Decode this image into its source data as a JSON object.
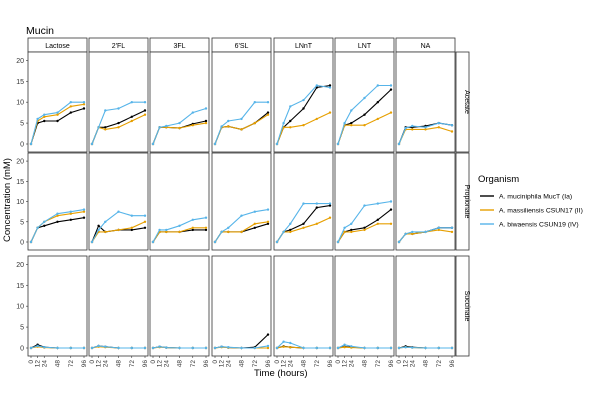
{
  "chart_data": {
    "type": "line",
    "title": "Mucin",
    "xlabel": "Time (hours)",
    "ylabel": "Concentration (mM)",
    "x_ticks": [
      "0",
      "12",
      "24",
      "48",
      "72",
      "96"
    ],
    "x": [
      0,
      12,
      24,
      48,
      72,
      96
    ],
    "xlim": [
      0,
      96
    ],
    "ylim": [
      0,
      22
    ],
    "y_ticks": [
      0,
      5,
      10,
      15,
      20
    ],
    "grid": false,
    "legend": {
      "title": "Organism",
      "position": "right",
      "entries": [
        {
          "name": "A. muciniphila MucT (Ia)",
          "color": "#000000"
        },
        {
          "name": "A. massiliensis CSUN17 (II)",
          "color": "#E69F00"
        },
        {
          "name": "A. biwaensis CSUN19 (IV)",
          "color": "#56B4E9"
        }
      ]
    },
    "columns": [
      "Lactose",
      "2'FL",
      "3FL",
      "6'SL",
      "LNnT",
      "LNT",
      "NA"
    ],
    "rows": [
      "Acetate",
      "Propionate",
      "Succinate"
    ],
    "panels": {
      "Acetate": {
        "Lactose": {
          "muc": [
            0,
            5,
            5.5,
            5.5,
            7.5,
            8.5
          ],
          "mas": [
            0,
            5.5,
            6.5,
            7,
            9,
            9.5
          ],
          "biw": [
            0,
            6,
            7,
            7.5,
            10,
            10
          ]
        },
        "2'FL": {
          "muc": [
            0,
            4,
            4,
            5,
            6.5,
            8
          ],
          "mas": [
            0,
            4,
            3.5,
            4,
            5.5,
            7
          ],
          "biw": [
            0,
            4,
            8,
            8.5,
            10,
            10
          ]
        },
        "3FL": {
          "muc": [
            0,
            4,
            4,
            3.8,
            4.8,
            5.5
          ],
          "mas": [
            0,
            4,
            4,
            3.8,
            4.5,
            5
          ],
          "biw": [
            0,
            4,
            4.3,
            5,
            7.5,
            8.5
          ]
        },
        "6'SL": {
          "muc": [
            0,
            4,
            4.2,
            3.5,
            5,
            7.5
          ],
          "mas": [
            0,
            4,
            4.2,
            3.5,
            5,
            7
          ],
          "biw": [
            0,
            4.2,
            5.5,
            6,
            10,
            10
          ]
        },
        "LNnT": {
          "muc": [
            0,
            4,
            5.5,
            8.5,
            13.5,
            14
          ],
          "mas": [
            0,
            4,
            4,
            4.5,
            6,
            7.5
          ],
          "biw": [
            0,
            5,
            9,
            10.5,
            14,
            13.5
          ]
        },
        "LNT": {
          "muc": [
            0,
            4.5,
            5,
            7,
            10,
            13
          ],
          "mas": [
            0,
            4.5,
            4.5,
            4.5,
            6,
            7.5
          ],
          "biw": [
            0,
            5,
            8,
            11,
            14,
            14
          ]
        },
        "NA": {
          "muc": [
            0,
            4,
            4,
            4.3,
            5,
            4.5
          ],
          "mas": [
            0,
            3.5,
            3.5,
            3.5,
            4,
            3
          ],
          "biw": [
            0,
            3.8,
            4.3,
            4,
            5,
            4.5
          ]
        }
      },
      "Propionate": {
        "Lactose": {
          "muc": [
            0,
            3.5,
            4,
            5,
            5.5,
            6
          ],
          "mas": [
            0,
            3.5,
            5,
            6.5,
            7,
            7.5
          ],
          "biw": [
            0,
            3.5,
            5,
            7,
            7.5,
            8
          ]
        },
        "2'FL": {
          "muc": [
            0,
            4,
            2.5,
            3,
            3,
            3.5
          ],
          "mas": [
            0,
            2.5,
            2.5,
            3,
            3.5,
            5
          ],
          "biw": [
            0,
            3,
            5,
            7.5,
            6.5,
            6.5
          ]
        },
        "3FL": {
          "muc": [
            0,
            2.5,
            2.5,
            2.5,
            3,
            3
          ],
          "mas": [
            0,
            2.5,
            2.5,
            2.5,
            3.5,
            3.5
          ],
          "biw": [
            0,
            3,
            3,
            4,
            5.5,
            6
          ]
        },
        "6'SL": {
          "muc": [
            0,
            2.5,
            2.5,
            2.5,
            3.5,
            4.5
          ],
          "mas": [
            0,
            2.5,
            2.5,
            2.5,
            4.5,
            5
          ],
          "biw": [
            0,
            2.5,
            3.5,
            6.5,
            7.5,
            8
          ]
        },
        "LNnT": {
          "muc": [
            0,
            2.5,
            3,
            4.5,
            8.5,
            9
          ],
          "mas": [
            0,
            2.5,
            2.5,
            3.5,
            4.5,
            6
          ],
          "biw": [
            0,
            2.5,
            4.5,
            9.5,
            9.5,
            9.5
          ]
        },
        "LNT": {
          "muc": [
            0,
            2.5,
            3,
            3.5,
            5.5,
            8
          ],
          "mas": [
            0,
            2.5,
            2.5,
            3,
            4.5,
            4.5
          ],
          "biw": [
            0,
            3.5,
            4.5,
            9,
            9.5,
            10
          ]
        },
        "NA": {
          "muc": [
            0,
            2,
            2,
            2.5,
            3.5,
            3.5
          ],
          "mas": [
            0,
            2,
            2,
            2.5,
            3,
            2.5
          ],
          "biw": [
            0,
            2,
            2.5,
            2.5,
            3.5,
            3.5
          ]
        }
      },
      "Succinate": {
        "Lactose": {
          "muc": [
            0,
            0.8,
            0.2,
            0,
            0,
            0
          ],
          "mas": [
            0,
            0.3,
            0.1,
            0,
            0,
            0
          ],
          "biw": [
            0,
            0.5,
            0.2,
            0,
            0,
            0
          ]
        },
        "2'FL": {
          "muc": [
            0,
            0.5,
            0.3,
            0,
            0,
            0
          ],
          "mas": [
            0,
            0.3,
            0.2,
            0,
            0,
            0
          ],
          "biw": [
            0,
            0.5,
            0.3,
            0,
            0,
            0
          ]
        },
        "3FL": {
          "muc": [
            0,
            0.3,
            0.1,
            0,
            0,
            0
          ],
          "mas": [
            0,
            0.2,
            0.1,
            0,
            0,
            0
          ],
          "biw": [
            0,
            0.3,
            0.1,
            0,
            0,
            0
          ]
        },
        "6'SL": {
          "muc": [
            0,
            0.3,
            0.1,
            0,
            0.2,
            3.2
          ],
          "mas": [
            0,
            0.2,
            0.1,
            0,
            0,
            0
          ],
          "biw": [
            0,
            0.3,
            0.2,
            0,
            0,
            0.5
          ]
        },
        "LNnT": {
          "muc": [
            0,
            0.4,
            0.2,
            0,
            0,
            0
          ],
          "mas": [
            0,
            0.3,
            0.2,
            0,
            0,
            0
          ],
          "biw": [
            0,
            1.5,
            1.2,
            0,
            0,
            0
          ]
        },
        "LNT": {
          "muc": [
            0,
            0.3,
            0.2,
            0,
            0,
            0
          ],
          "mas": [
            0,
            0.2,
            0.1,
            0,
            0,
            0
          ],
          "biw": [
            0,
            0.8,
            0.4,
            0,
            0,
            0
          ]
        },
        "NA": {
          "muc": [
            0,
            0.4,
            0.2,
            0,
            0,
            0
          ],
          "mas": [
            0,
            0.2,
            0.1,
            0,
            0,
            0
          ],
          "biw": [
            0,
            0.2,
            0.1,
            0,
            0,
            0
          ]
        }
      }
    }
  }
}
